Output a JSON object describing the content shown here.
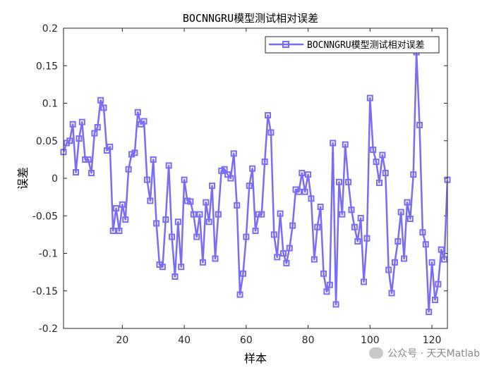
{
  "chart_data": {
    "type": "line",
    "title": "BOCNNGRU模型测试相对误差",
    "xlabel": "样本",
    "ylabel": "误差",
    "xlim": [
      1,
      125
    ],
    "ylim": [
      -0.2,
      0.2
    ],
    "xticks": [
      20,
      40,
      60,
      80,
      100,
      120
    ],
    "yticks": [
      -0.2,
      -0.15,
      -0.1,
      -0.05,
      0,
      0.05,
      0.1,
      0.15,
      0.2
    ],
    "ytick_labels": [
      "-0.2",
      "-0.15",
      "-0.1",
      "-0.05",
      "0",
      "0.05",
      "0.1",
      "0.15",
      "0.2"
    ],
    "legend_position": "top-right",
    "series": [
      {
        "name": "BOCNNGRU模型测试相对误差",
        "color": "#7b6cf6",
        "marker": "square",
        "x": [
          1,
          2,
          3,
          4,
          5,
          6,
          7,
          8,
          9,
          10,
          11,
          12,
          13,
          14,
          15,
          16,
          17,
          18,
          19,
          20,
          21,
          22,
          23,
          24,
          25,
          26,
          27,
          28,
          29,
          30,
          31,
          32,
          33,
          34,
          35,
          36,
          37,
          38,
          39,
          40,
          41,
          42,
          43,
          44,
          45,
          46,
          47,
          48,
          49,
          50,
          51,
          52,
          53,
          54,
          55,
          56,
          57,
          58,
          59,
          60,
          61,
          62,
          63,
          64,
          65,
          66,
          67,
          68,
          69,
          70,
          71,
          72,
          73,
          74,
          75,
          76,
          77,
          78,
          79,
          80,
          81,
          82,
          83,
          84,
          85,
          86,
          87,
          88,
          89,
          90,
          91,
          92,
          93,
          94,
          95,
          96,
          97,
          98,
          99,
          100,
          101,
          102,
          103,
          104,
          105,
          106,
          107,
          108,
          109,
          110,
          111,
          112,
          113,
          114,
          115,
          116,
          117,
          118,
          119,
          120,
          121,
          122,
          123,
          124,
          125
        ],
        "values": [
          0.035,
          0.047,
          0.05,
          0.072,
          0.008,
          0.053,
          0.075,
          0.025,
          0.025,
          0.007,
          0.06,
          0.068,
          0.104,
          0.094,
          0.037,
          0.042,
          -0.07,
          -0.04,
          -0.07,
          -0.035,
          -0.055,
          0.012,
          0.032,
          0.034,
          0.088,
          0.072,
          0.076,
          -0.002,
          -0.03,
          0.025,
          -0.06,
          -0.115,
          -0.118,
          -0.055,
          0.017,
          -0.078,
          -0.131,
          -0.058,
          -0.118,
          -0.002,
          -0.03,
          -0.031,
          -0.048,
          -0.078,
          -0.048,
          -0.112,
          -0.032,
          -0.058,
          -0.01,
          -0.107,
          -0.048,
          0.01,
          0.012,
          0.005,
          0.0,
          0.033,
          -0.036,
          -0.155,
          -0.127,
          -0.078,
          -0.01,
          0.013,
          -0.07,
          -0.048,
          -0.048,
          0.022,
          0.084,
          0.061,
          -0.075,
          -0.105,
          -0.047,
          -0.1,
          -0.113,
          -0.093,
          -0.063,
          -0.015,
          -0.018,
          0.007,
          -0.018,
          0.005,
          -0.027,
          -0.108,
          -0.065,
          -0.038,
          -0.127,
          -0.151,
          -0.142,
          0.047,
          -0.168,
          -0.005,
          -0.048,
          0.045,
          -0.005,
          -0.042,
          -0.065,
          -0.084,
          -0.053,
          -0.138,
          -0.08,
          0.107,
          0.038,
          0.022,
          -0.006,
          0.031,
          0.007,
          -0.122,
          -0.153,
          -0.112,
          -0.084,
          -0.045,
          -0.107,
          -0.032,
          -0.054,
          0.005,
          0.168,
          0.071,
          -0.072,
          -0.088,
          -0.178,
          -0.112,
          -0.162,
          -0.141,
          -0.095,
          -0.108,
          -0.002
        ]
      }
    ]
  },
  "watermark": {
    "text": "公众号 · 天天Matlab",
    "icon": "wechat-icon"
  }
}
